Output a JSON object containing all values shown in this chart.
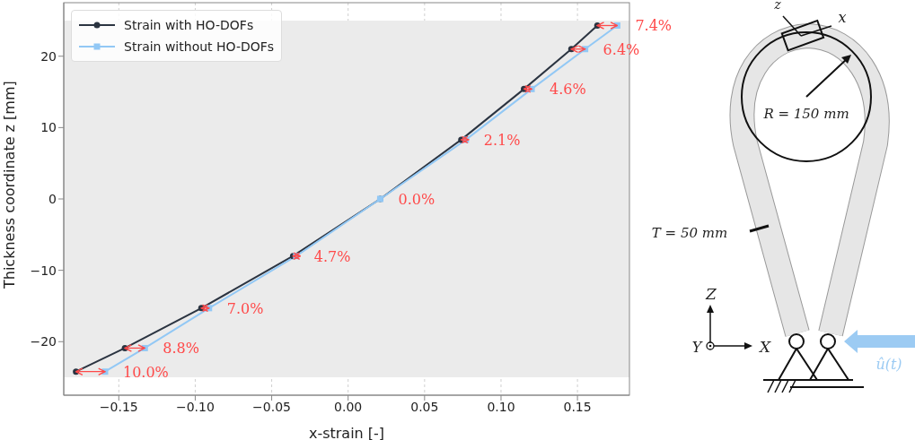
{
  "chart_data": {
    "type": "line",
    "xlabel": "x-strain [-]",
    "ylabel": "Thickness coordinate z [mm]",
    "xlim": [
      -0.186,
      0.184
    ],
    "ylim": [
      -27.5,
      27.5
    ],
    "xticks": [
      {
        "value": -0.15,
        "label": "−0.15"
      },
      {
        "value": -0.1,
        "label": "−0.10"
      },
      {
        "value": -0.05,
        "label": "−0.05"
      },
      {
        "value": 0,
        "label": "0.00"
      },
      {
        "value": 0.05,
        "label": "0.05"
      },
      {
        "value": 0.1,
        "label": "0.10"
      },
      {
        "value": 0.15,
        "label": "0.15"
      }
    ],
    "yticks": [
      {
        "value": -20,
        "label": "−20"
      },
      {
        "value": -10,
        "label": "−10"
      },
      0,
      10,
      20
    ],
    "grid": true,
    "legend": "top left",
    "line_style": "solid",
    "bands": [
      {
        "axis": "y",
        "from": -25,
        "to": 25,
        "color": "#ebebeb"
      }
    ],
    "series": [
      {
        "name": "Strain with HO-DOFs",
        "color": "#2b3441",
        "marker": "circle",
        "x": [
          -0.178,
          -0.146,
          -0.096,
          -0.036,
          0.021,
          0.074,
          0.115,
          0.146,
          0.163
        ],
        "values": [
          -24.2,
          -20.9,
          -15.3,
          -8.0,
          0,
          8.3,
          15.4,
          21.0,
          24.3
        ]
      },
      {
        "name": "Strain without HO-DOFs",
        "color": "#92c8f5",
        "marker": "square",
        "x": [
          -0.159,
          -0.133,
          -0.091,
          -0.034,
          0.021,
          0.077,
          0.12,
          0.155,
          0.176
        ],
        "values": [
          -24.2,
          -20.9,
          -15.3,
          -8.0,
          0,
          8.3,
          15.4,
          21.0,
          24.3
        ]
      }
    ],
    "annotations": [
      {
        "text": "10.0%",
        "x": -0.159,
        "y": -24.2
      },
      {
        "text": "8.8%",
        "x": -0.133,
        "y": -20.9
      },
      {
        "text": "7.0%",
        "x": -0.091,
        "y": -15.3
      },
      {
        "text": "4.7%",
        "x": -0.034,
        "y": -8.0
      },
      {
        "text": "0.0%",
        "x": 0.021,
        "y": 0
      },
      {
        "text": "2.1%",
        "x": 0.077,
        "y": 8.3
      },
      {
        "text": "4.6%",
        "x": 0.12,
        "y": 15.4
      },
      {
        "text": "6.4%",
        "x": 0.155,
        "y": 21.0
      },
      {
        "text": "7.4%",
        "x": 0.176,
        "y": 24.3
      },
      "z",
      "x",
      "R = 150 mm",
      "T = 50 mm",
      "Z",
      "Y",
      "X",
      "û(t)"
    ]
  }
}
